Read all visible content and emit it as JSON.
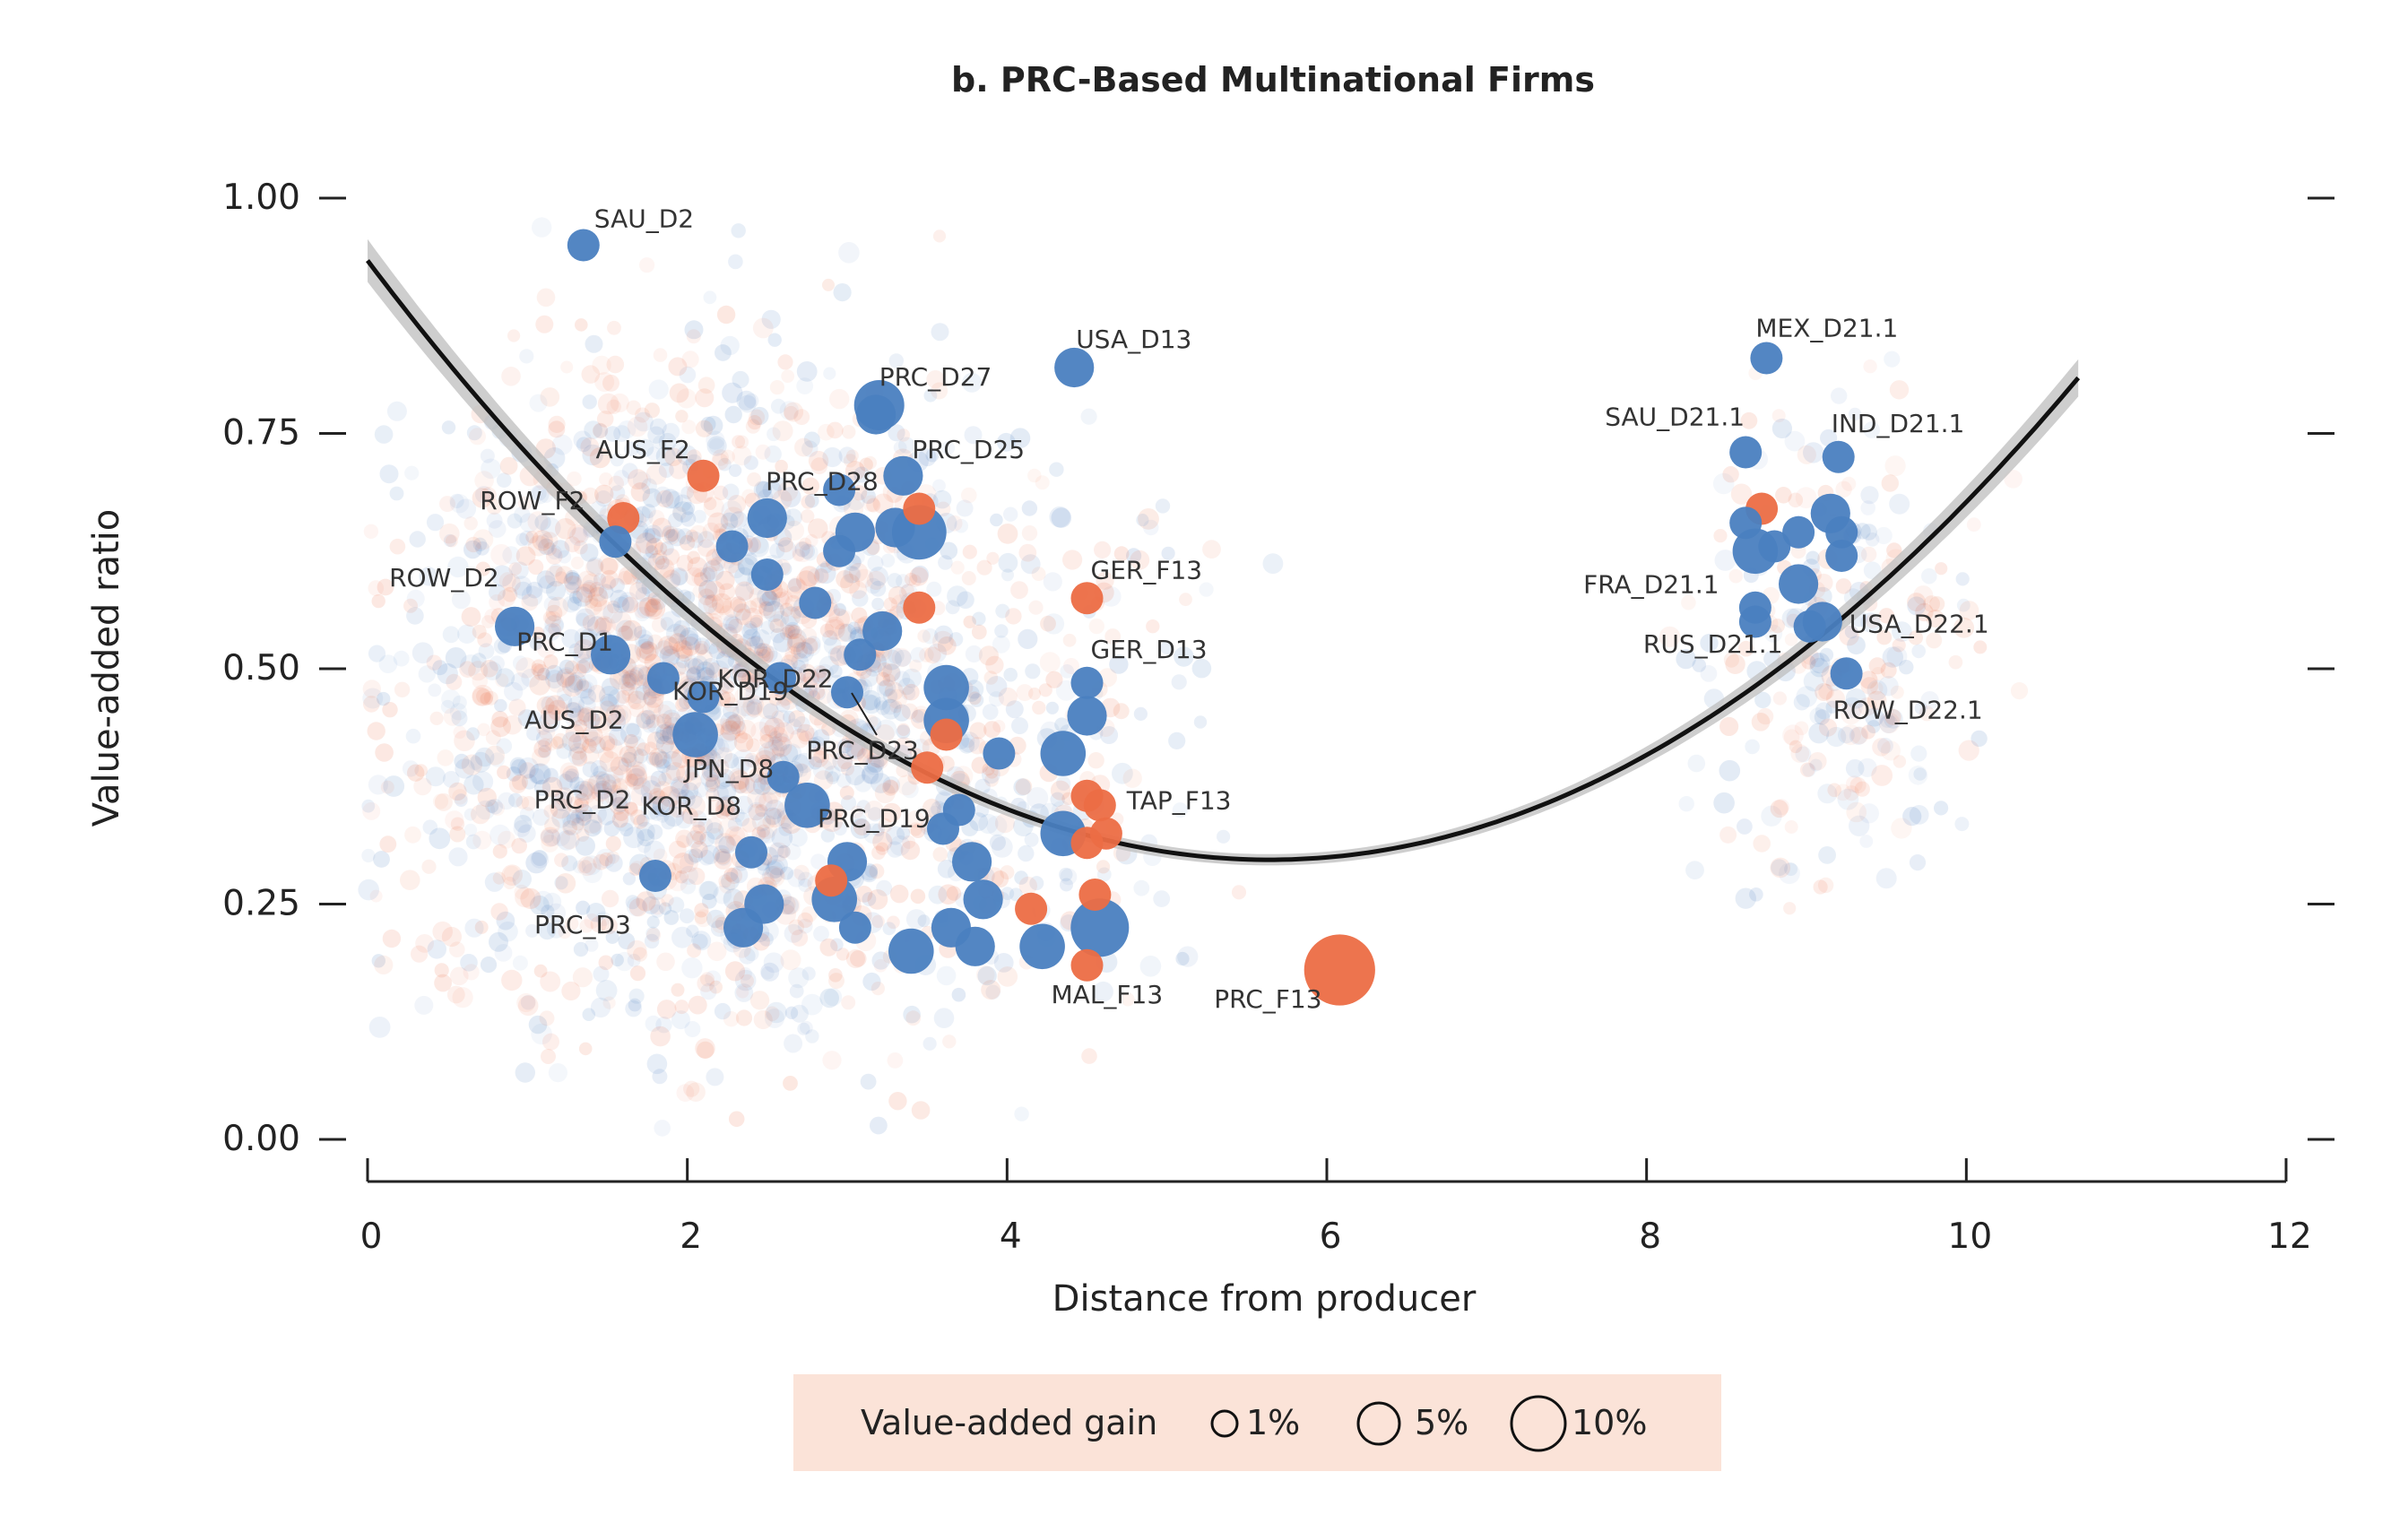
{
  "chart_data": {
    "type": "scatter",
    "title": "b. PRC-Based Multinational Firms",
    "xlabel": "Distance from producer",
    "ylabel": "Value-added ratio",
    "xlim": [
      0,
      12
    ],
    "ylim": [
      0,
      1
    ],
    "x_ticks": [
      "0",
      "2",
      "4",
      "6",
      "8",
      "10",
      "12"
    ],
    "y_ticks": [
      "0.00",
      "0.25",
      "0.50",
      "0.75",
      "1.00"
    ],
    "colors": {
      "domestic": "#4a7fc0",
      "foreign": "#ec6d45",
      "fit": "#111111",
      "ci_band": "#bdbdbd",
      "legend_bg": "#fbe3d8"
    },
    "legend": {
      "title": "Value-added gain",
      "sizes": [
        "1%",
        "5%",
        "10%"
      ]
    },
    "fit_curve": {
      "type": "quadratic",
      "x": [
        0,
        1,
        2,
        3,
        4,
        5,
        5.7,
        6,
        7,
        8,
        9,
        10,
        10.7
      ],
      "y": [
        0.945,
        0.72,
        0.55,
        0.43,
        0.36,
        0.315,
        0.3,
        0.305,
        0.33,
        0.4,
        0.52,
        0.68,
        0.81
      ]
    },
    "points": [
      {
        "label": "SAU_D2",
        "x": 1.35,
        "y": 0.95,
        "gain": 1,
        "group": "domestic"
      },
      {
        "label": "USA_D13",
        "x": 4.42,
        "y": 0.82,
        "gain": 2,
        "group": "domestic"
      },
      {
        "label": "PRC_D27",
        "x": 3.2,
        "y": 0.78,
        "gain": 4,
        "group": "domestic"
      },
      {
        "label": "",
        "x": 3.18,
        "y": 0.77,
        "gain": 2,
        "group": "domestic"
      },
      {
        "label": "PRC_D28",
        "x": 2.95,
        "y": 0.69,
        "gain": 1,
        "group": "domestic"
      },
      {
        "label": "PRC_D25",
        "x": 3.35,
        "y": 0.705,
        "gain": 2,
        "group": "domestic"
      },
      {
        "label": "AUS_F2",
        "x": 2.1,
        "y": 0.705,
        "gain": 1,
        "group": "foreign"
      },
      {
        "label": "ROW_F2",
        "x": 1.6,
        "y": 0.66,
        "gain": 1,
        "group": "foreign"
      },
      {
        "label": "ROW_D2",
        "x": 0.92,
        "y": 0.545,
        "gain": 2,
        "group": "domestic"
      },
      {
        "label": "PRC_D1",
        "x": 1.52,
        "y": 0.515,
        "gain": 2,
        "group": "domestic"
      },
      {
        "label": "AUS_D2",
        "x": 1.85,
        "y": 0.49,
        "gain": 1,
        "group": "domestic"
      },
      {
        "label": "PRC_D2",
        "x": 2.05,
        "y": 0.43,
        "gain": 3,
        "group": "domestic"
      },
      {
        "label": "KOR_D22",
        "x": 2.58,
        "y": 0.49,
        "gain": 1,
        "group": "domestic"
      },
      {
        "label": "KOR_D19",
        "x": 3.0,
        "y": 0.475,
        "gain": 1,
        "group": "domestic"
      },
      {
        "label": "JPN_D8",
        "x": 2.6,
        "y": 0.385,
        "gain": 1,
        "group": "domestic"
      },
      {
        "label": "PRC_D23",
        "x": 3.5,
        "y": 0.395,
        "gain": 1,
        "group": "foreign"
      },
      {
        "label": "KOR_D8",
        "x": 2.75,
        "y": 0.355,
        "gain": 3,
        "group": "domestic"
      },
      {
        "label": "PRC_D19",
        "x": 3.6,
        "y": 0.33,
        "gain": 1,
        "group": "domestic"
      },
      {
        "label": "PRC_D3",
        "x": 1.8,
        "y": 0.28,
        "gain": 1,
        "group": "domestic"
      },
      {
        "label": "GER_F13",
        "x": 4.5,
        "y": 0.575,
        "gain": 1,
        "group": "foreign"
      },
      {
        "label": "GER_D13",
        "x": 4.5,
        "y": 0.485,
        "gain": 1,
        "group": "domestic"
      },
      {
        "label": "TAP_F13",
        "x": 4.58,
        "y": 0.355,
        "gain": 1,
        "group": "foreign"
      },
      {
        "label": "MAL_F13",
        "x": 4.5,
        "y": 0.185,
        "gain": 1,
        "group": "foreign"
      },
      {
        "label": "PRC_F13",
        "x": 6.08,
        "y": 0.18,
        "gain": 10,
        "group": "foreign"
      },
      {
        "label": "",
        "x": 4.58,
        "y": 0.225,
        "gain": 6,
        "group": "domestic"
      },
      {
        "label": "",
        "x": 3.45,
        "y": 0.645,
        "gain": 5,
        "group": "domestic"
      },
      {
        "label": "",
        "x": 3.45,
        "y": 0.67,
        "gain": 1,
        "group": "foreign"
      },
      {
        "label": "",
        "x": 3.45,
        "y": 0.565,
        "gain": 1,
        "group": "foreign"
      },
      {
        "label": "",
        "x": 3.62,
        "y": 0.48,
        "gain": 3,
        "group": "domestic"
      },
      {
        "label": "",
        "x": 3.62,
        "y": 0.445,
        "gain": 3,
        "group": "domestic"
      },
      {
        "label": "",
        "x": 3.62,
        "y": 0.43,
        "gain": 1,
        "group": "foreign"
      },
      {
        "label": "",
        "x": 4.35,
        "y": 0.41,
        "gain": 3,
        "group": "domestic"
      },
      {
        "label": "",
        "x": 4.35,
        "y": 0.325,
        "gain": 3,
        "group": "domestic"
      },
      {
        "label": "",
        "x": 4.5,
        "y": 0.45,
        "gain": 2,
        "group": "domestic"
      },
      {
        "label": "",
        "x": 4.5,
        "y": 0.365,
        "gain": 1,
        "group": "foreign"
      },
      {
        "label": "",
        "x": 4.5,
        "y": 0.315,
        "gain": 1,
        "group": "foreign"
      },
      {
        "label": "",
        "x": 4.62,
        "y": 0.325,
        "gain": 1,
        "group": "foreign"
      },
      {
        "label": "",
        "x": 4.55,
        "y": 0.26,
        "gain": 1,
        "group": "foreign"
      },
      {
        "label": "",
        "x": 4.15,
        "y": 0.245,
        "gain": 1,
        "group": "foreign"
      },
      {
        "label": "",
        "x": 4.22,
        "y": 0.205,
        "gain": 3,
        "group": "domestic"
      },
      {
        "label": "",
        "x": 3.8,
        "y": 0.205,
        "gain": 2,
        "group": "domestic"
      },
      {
        "label": "",
        "x": 3.4,
        "y": 0.2,
        "gain": 3,
        "group": "domestic"
      },
      {
        "label": "",
        "x": 3.78,
        "y": 0.295,
        "gain": 2,
        "group": "domestic"
      },
      {
        "label": "",
        "x": 3.85,
        "y": 0.255,
        "gain": 2,
        "group": "domestic"
      },
      {
        "label": "",
        "x": 3.65,
        "y": 0.225,
        "gain": 2,
        "group": "domestic"
      },
      {
        "label": "",
        "x": 2.92,
        "y": 0.255,
        "gain": 3,
        "group": "domestic"
      },
      {
        "label": "",
        "x": 3.0,
        "y": 0.295,
        "gain": 2,
        "group": "domestic"
      },
      {
        "label": "",
        "x": 2.35,
        "y": 0.225,
        "gain": 2,
        "group": "domestic"
      },
      {
        "label": "",
        "x": 2.48,
        "y": 0.25,
        "gain": 2,
        "group": "domestic"
      },
      {
        "label": "",
        "x": 2.9,
        "y": 0.275,
        "gain": 1,
        "group": "foreign"
      },
      {
        "label": "",
        "x": 3.05,
        "y": 0.225,
        "gain": 1,
        "group": "domestic"
      },
      {
        "label": "",
        "x": 2.5,
        "y": 0.66,
        "gain": 2,
        "group": "domestic"
      },
      {
        "label": "",
        "x": 3.05,
        "y": 0.645,
        "gain": 2,
        "group": "domestic"
      },
      {
        "label": "",
        "x": 3.3,
        "y": 0.65,
        "gain": 2,
        "group": "domestic"
      },
      {
        "label": "",
        "x": 2.5,
        "y": 0.6,
        "gain": 1,
        "group": "domestic"
      },
      {
        "label": "",
        "x": 2.28,
        "y": 0.63,
        "gain": 1,
        "group": "domestic"
      },
      {
        "label": "",
        "x": 2.95,
        "y": 0.625,
        "gain": 1,
        "group": "domestic"
      },
      {
        "label": "",
        "x": 3.08,
        "y": 0.515,
        "gain": 1,
        "group": "domestic"
      },
      {
        "label": "",
        "x": 3.22,
        "y": 0.54,
        "gain": 2,
        "group": "domestic"
      },
      {
        "label": "",
        "x": 2.8,
        "y": 0.57,
        "gain": 1,
        "group": "domestic"
      },
      {
        "label": "",
        "x": 1.55,
        "y": 0.635,
        "gain": 1,
        "group": "domestic"
      },
      {
        "label": "",
        "x": 2.1,
        "y": 0.47,
        "gain": 1,
        "group": "domestic"
      },
      {
        "label": "",
        "x": 3.7,
        "y": 0.35,
        "gain": 1,
        "group": "domestic"
      },
      {
        "label": "",
        "x": 3.95,
        "y": 0.41,
        "gain": 1,
        "group": "domestic"
      },
      {
        "label": "",
        "x": 2.4,
        "y": 0.305,
        "gain": 1,
        "group": "domestic"
      },
      {
        "label": "MEX_D21.1",
        "x": 8.75,
        "y": 0.83,
        "gain": 1,
        "group": "domestic"
      },
      {
        "label": "SAU_D21.1",
        "x": 8.62,
        "y": 0.73,
        "gain": 1,
        "group": "domestic"
      },
      {
        "label": "IND_D21.1",
        "x": 9.2,
        "y": 0.725,
        "gain": 1,
        "group": "domestic"
      },
      {
        "label": "",
        "x": 9.15,
        "y": 0.665,
        "gain": 2,
        "group": "domestic"
      },
      {
        "label": "",
        "x": 8.72,
        "y": 0.67,
        "gain": 1,
        "group": "foreign"
      },
      {
        "label": "",
        "x": 8.62,
        "y": 0.655,
        "gain": 1,
        "group": "domestic"
      },
      {
        "label": "",
        "x": 8.95,
        "y": 0.645,
        "gain": 1,
        "group": "domestic"
      },
      {
        "label": "",
        "x": 9.22,
        "y": 0.645,
        "gain": 1,
        "group": "domestic"
      },
      {
        "label": "",
        "x": 8.68,
        "y": 0.625,
        "gain": 3,
        "group": "domestic"
      },
      {
        "label": "",
        "x": 8.8,
        "y": 0.63,
        "gain": 1,
        "group": "domestic"
      },
      {
        "label": "",
        "x": 9.22,
        "y": 0.62,
        "gain": 1,
        "group": "domestic"
      },
      {
        "label": "FRA_D21.1",
        "x": 8.95,
        "y": 0.59,
        "gain": 2,
        "group": "domestic"
      },
      {
        "label": "USA_D22.1",
        "x": 9.1,
        "y": 0.55,
        "gain": 2,
        "group": "domestic"
      },
      {
        "label": "RUS_D21.1",
        "x": 8.68,
        "y": 0.565,
        "gain": 1,
        "group": "domestic"
      },
      {
        "label": "",
        "x": 8.68,
        "y": 0.55,
        "gain": 1,
        "group": "domestic"
      },
      {
        "label": "",
        "x": 9.02,
        "y": 0.545,
        "gain": 1,
        "group": "domestic"
      },
      {
        "label": "ROW_D22.1",
        "x": 9.25,
        "y": 0.495,
        "gain": 1,
        "group": "domestic"
      }
    ]
  }
}
